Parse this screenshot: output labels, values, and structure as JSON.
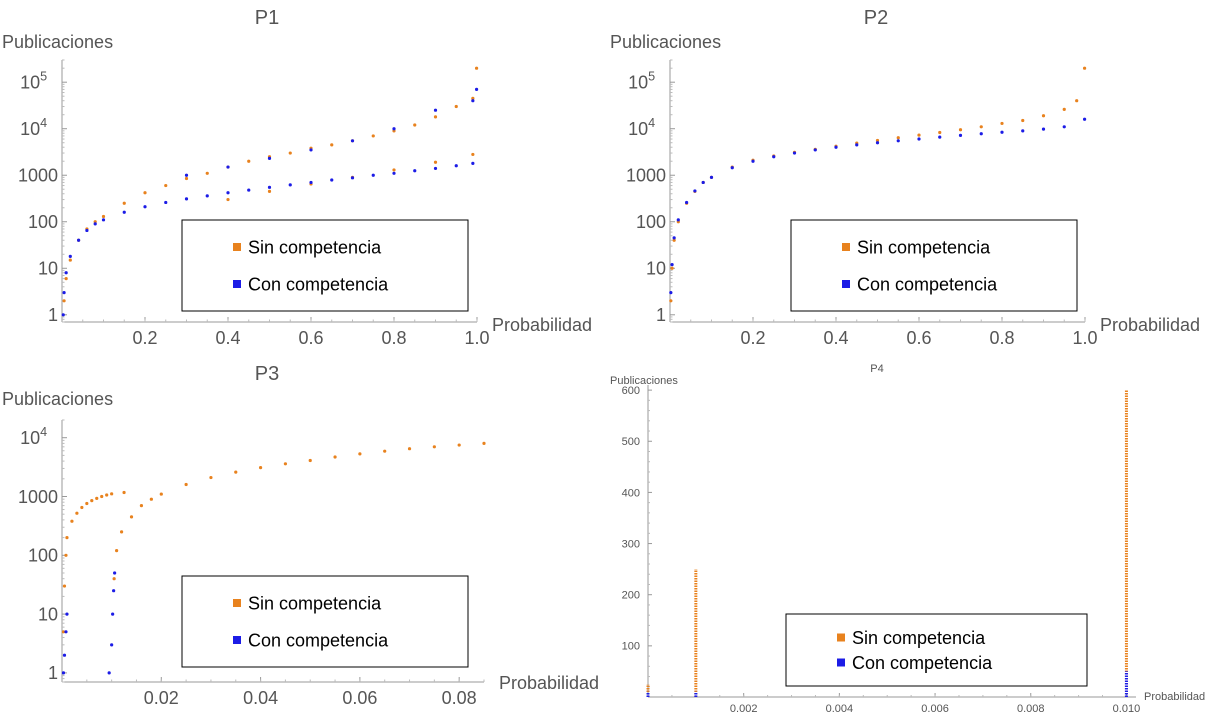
{
  "figure": {
    "legend_items": [
      "Sin competencia",
      "Con competencia"
    ]
  },
  "chart_data": [
    {
      "title": "P1",
      "type": "scatter",
      "xlabel": "Probabilidad",
      "ylabel": "Publicaciones",
      "yscale": "log",
      "xlim": [
        0,
        1.0
      ],
      "ylim": [
        0.7,
        300000
      ],
      "x_ticks": [
        0.2,
        0.4,
        0.6,
        0.8,
        1.0
      ],
      "x_tick_labels": [
        "0.2",
        "0.4",
        "0.6",
        "0.8",
        "1.0"
      ],
      "y_ticks": [
        1,
        10,
        100,
        1000,
        10000,
        100000
      ],
      "y_tick_labels": [
        {
          "base": "1",
          "exp": ""
        },
        {
          "base": "10",
          "exp": ""
        },
        {
          "base": "100",
          "exp": ""
        },
        {
          "base": "1000",
          "exp": ""
        },
        {
          "base": "10",
          "exp": "4"
        },
        {
          "base": "10",
          "exp": "5"
        }
      ],
      "legend": "inside-lower-right",
      "series": [
        {
          "name": "Sin competencia",
          "color": "#e8821e",
          "style": "dots",
          "points": [
            [
              0.005,
              2
            ],
            [
              0.01,
              6
            ],
            [
              0.02,
              15
            ],
            [
              0.04,
              40
            ],
            [
              0.06,
              70
            ],
            [
              0.08,
              100
            ],
            [
              0.1,
              130
            ],
            [
              0.15,
              250
            ],
            [
              0.2,
              420
            ],
            [
              0.25,
              600
            ],
            [
              0.3,
              850
            ],
            [
              0.35,
              1100
            ],
            [
              0.4,
              1500
            ],
            [
              0.45,
              2000
            ],
            [
              0.5,
              2500
            ],
            [
              0.55,
              3000
            ],
            [
              0.6,
              3800
            ],
            [
              0.65,
              4500
            ],
            [
              0.7,
              5500
            ],
            [
              0.75,
              7000
            ],
            [
              0.8,
              9000
            ],
            [
              0.85,
              12000
            ],
            [
              0.9,
              18000
            ],
            [
              0.95,
              30000
            ],
            [
              0.99,
              45000
            ],
            [
              0.4,
              300
            ],
            [
              0.5,
              450
            ],
            [
              0.6,
              650
            ],
            [
              0.7,
              900
            ],
            [
              0.8,
              1300
            ],
            [
              0.9,
              1900
            ],
            [
              0.99,
              2800
            ],
            [
              0.999,
              200000
            ]
          ]
        },
        {
          "name": "Con competencia",
          "color": "#1c1ce6",
          "style": "dots",
          "points": [
            [
              0.003,
              1
            ],
            [
              0.005,
              3
            ],
            [
              0.01,
              8
            ],
            [
              0.02,
              18
            ],
            [
              0.04,
              40
            ],
            [
              0.06,
              65
            ],
            [
              0.08,
              90
            ],
            [
              0.1,
              110
            ],
            [
              0.15,
              160
            ],
            [
              0.2,
              210
            ],
            [
              0.25,
              260
            ],
            [
              0.3,
              310
            ],
            [
              0.35,
              360
            ],
            [
              0.4,
              420
            ],
            [
              0.45,
              480
            ],
            [
              0.5,
              550
            ],
            [
              0.55,
              620
            ],
            [
              0.6,
              700
            ],
            [
              0.65,
              790
            ],
            [
              0.7,
              880
            ],
            [
              0.75,
              1000
            ],
            [
              0.8,
              1100
            ],
            [
              0.85,
              1250
            ],
            [
              0.9,
              1400
            ],
            [
              0.95,
              1600
            ],
            [
              0.99,
              1800
            ],
            [
              0.3,
              1000
            ],
            [
              0.4,
              1500
            ],
            [
              0.5,
              2300
            ],
            [
              0.6,
              3500
            ],
            [
              0.7,
              5500
            ],
            [
              0.8,
              10000
            ],
            [
              0.9,
              25000
            ],
            [
              0.99,
              40000
            ],
            [
              0.999,
              70000
            ]
          ]
        }
      ]
    },
    {
      "title": "P2",
      "type": "scatter",
      "xlabel": "Probabilidad",
      "ylabel": "Publicaciones",
      "yscale": "log",
      "xlim": [
        0,
        1.0
      ],
      "ylim": [
        0.7,
        300000
      ],
      "x_ticks": [
        0.2,
        0.4,
        0.6,
        0.8,
        1.0
      ],
      "x_tick_labels": [
        "0.2",
        "0.4",
        "0.6",
        "0.8",
        "1.0"
      ],
      "y_ticks": [
        1,
        10,
        100,
        1000,
        10000,
        100000
      ],
      "y_tick_labels": [
        {
          "base": "1",
          "exp": ""
        },
        {
          "base": "10",
          "exp": ""
        },
        {
          "base": "100",
          "exp": ""
        },
        {
          "base": "1000",
          "exp": ""
        },
        {
          "base": "10",
          "exp": "4"
        },
        {
          "base": "10",
          "exp": "5"
        }
      ],
      "legend": "inside-lower-right",
      "series": [
        {
          "name": "Sin competencia",
          "color": "#e8821e",
          "style": "dots",
          "points": [
            [
              0.002,
              2
            ],
            [
              0.005,
              10
            ],
            [
              0.01,
              40
            ],
            [
              0.02,
              100
            ],
            [
              0.04,
              250
            ],
            [
              0.06,
              450
            ],
            [
              0.08,
              700
            ],
            [
              0.1,
              900
            ],
            [
              0.15,
              1500
            ],
            [
              0.2,
              2100
            ],
            [
              0.25,
              2600
            ],
            [
              0.3,
              3100
            ],
            [
              0.35,
              3600
            ],
            [
              0.4,
              4200
            ],
            [
              0.45,
              4900
            ],
            [
              0.5,
              5600
            ],
            [
              0.55,
              6400
            ],
            [
              0.6,
              7300
            ],
            [
              0.65,
              8300
            ],
            [
              0.7,
              9500
            ],
            [
              0.75,
              11000
            ],
            [
              0.8,
              13000
            ],
            [
              0.85,
              15000
            ],
            [
              0.9,
              19000
            ],
            [
              0.95,
              26000
            ],
            [
              0.98,
              40000
            ],
            [
              0.999,
              200000
            ]
          ]
        },
        {
          "name": "Con competencia",
          "color": "#1c1ce6",
          "style": "dots",
          "points": [
            [
              0.002,
              3
            ],
            [
              0.005,
              12
            ],
            [
              0.01,
              45
            ],
            [
              0.02,
              110
            ],
            [
              0.04,
              260
            ],
            [
              0.06,
              460
            ],
            [
              0.08,
              700
            ],
            [
              0.1,
              900
            ],
            [
              0.15,
              1450
            ],
            [
              0.2,
              2000
            ],
            [
              0.25,
              2500
            ],
            [
              0.3,
              3000
            ],
            [
              0.35,
              3500
            ],
            [
              0.4,
              4000
            ],
            [
              0.45,
              4500
            ],
            [
              0.5,
              5000
            ],
            [
              0.55,
              5500
            ],
            [
              0.6,
              6000
            ],
            [
              0.65,
              6600
            ],
            [
              0.7,
              7200
            ],
            [
              0.75,
              7800
            ],
            [
              0.8,
              8400
            ],
            [
              0.85,
              9000
            ],
            [
              0.9,
              9800
            ],
            [
              0.95,
              11000
            ],
            [
              0.999,
              16000
            ]
          ]
        }
      ]
    },
    {
      "title": "P3",
      "type": "scatter",
      "xlabel": "Probabilidad",
      "ylabel": "Publicaciones",
      "yscale": "log",
      "xlim": [
        0,
        0.085
      ],
      "ylim": [
        0.7,
        20000
      ],
      "x_ticks": [
        0.02,
        0.04,
        0.06,
        0.08
      ],
      "x_tick_labels": [
        "0.02",
        "0.04",
        "0.06",
        "0.08"
      ],
      "y_ticks": [
        1,
        10,
        100,
        1000,
        10000
      ],
      "y_tick_labels": [
        {
          "base": "1",
          "exp": ""
        },
        {
          "base": "10",
          "exp": ""
        },
        {
          "base": "100",
          "exp": ""
        },
        {
          "base": "1000",
          "exp": ""
        },
        {
          "base": "10",
          "exp": "4"
        }
      ],
      "legend": "inside-lower-right",
      "series": [
        {
          "name": "Sin competencia",
          "color": "#e8821e",
          "style": "dots",
          "points": [
            [
              0.0003,
              5
            ],
            [
              0.0005,
              30
            ],
            [
              0.0008,
              100
            ],
            [
              0.001,
              200
            ],
            [
              0.002,
              380
            ],
            [
              0.003,
              520
            ],
            [
              0.004,
              650
            ],
            [
              0.005,
              760
            ],
            [
              0.006,
              850
            ],
            [
              0.007,
              930
            ],
            [
              0.008,
              1000
            ],
            [
              0.009,
              1060
            ],
            [
              0.01,
              1110
            ],
            [
              0.0125,
              1170
            ],
            [
              0.0105,
              40
            ],
            [
              0.011,
              120
            ],
            [
              0.012,
              250
            ],
            [
              0.014,
              450
            ],
            [
              0.016,
              700
            ],
            [
              0.018,
              900
            ],
            [
              0.02,
              1100
            ],
            [
              0.025,
              1600
            ],
            [
              0.03,
              2100
            ],
            [
              0.035,
              2600
            ],
            [
              0.04,
              3100
            ],
            [
              0.045,
              3600
            ],
            [
              0.05,
              4100
            ],
            [
              0.055,
              4700
            ],
            [
              0.06,
              5300
            ],
            [
              0.065,
              5900
            ],
            [
              0.07,
              6500
            ],
            [
              0.075,
              7000
            ],
            [
              0.08,
              7500
            ],
            [
              0.085,
              8000
            ]
          ]
        },
        {
          "name": "Con competencia",
          "color": "#1c1ce6",
          "style": "dots",
          "points": [
            [
              0.0003,
              1
            ],
            [
              0.0005,
              2
            ],
            [
              0.0008,
              5
            ],
            [
              0.001,
              10
            ],
            [
              0.0095,
              1
            ],
            [
              0.01,
              3
            ],
            [
              0.0102,
              10
            ],
            [
              0.0104,
              25
            ],
            [
              0.0106,
              50
            ]
          ]
        }
      ]
    },
    {
      "title": "P4",
      "type": "scatter",
      "xlabel": "Probabilidad",
      "ylabel": "Publicaciones",
      "yscale": "linear",
      "xlim": [
        0,
        0.0102
      ],
      "ylim": [
        0,
        610
      ],
      "x_ticks": [
        0.002,
        0.004,
        0.006,
        0.008,
        0.01
      ],
      "x_tick_labels": [
        "0.002",
        "0.004",
        "0.006",
        "0.008",
        "0.010"
      ],
      "y_ticks": [
        100,
        200,
        300,
        400,
        500,
        600
      ],
      "y_tick_labels": [
        {
          "base": "100",
          "exp": ""
        },
        {
          "base": "200",
          "exp": ""
        },
        {
          "base": "300",
          "exp": ""
        },
        {
          "base": "400",
          "exp": ""
        },
        {
          "base": "500",
          "exp": ""
        },
        {
          "base": "600",
          "exp": ""
        }
      ],
      "legend": "inside-lower-right",
      "series": [
        {
          "name": "Sin competencia",
          "color": "#e8821e",
          "style": "vertical-dot-columns",
          "columns": [
            {
              "x": 0.0,
              "from": 0,
              "to": 25
            },
            {
              "x": 0.001,
              "from": 0,
              "to": 250
            },
            {
              "x": 0.01,
              "from": 0,
              "to": 600
            }
          ]
        },
        {
          "name": "Con competencia",
          "color": "#1c1ce6",
          "style": "vertical-dot-columns",
          "columns": [
            {
              "x": 0.0,
              "from": 0,
              "to": 10
            },
            {
              "x": 0.001,
              "from": 0,
              "to": 10
            },
            {
              "x": 0.01,
              "from": 0,
              "to": 50
            }
          ]
        }
      ]
    }
  ]
}
